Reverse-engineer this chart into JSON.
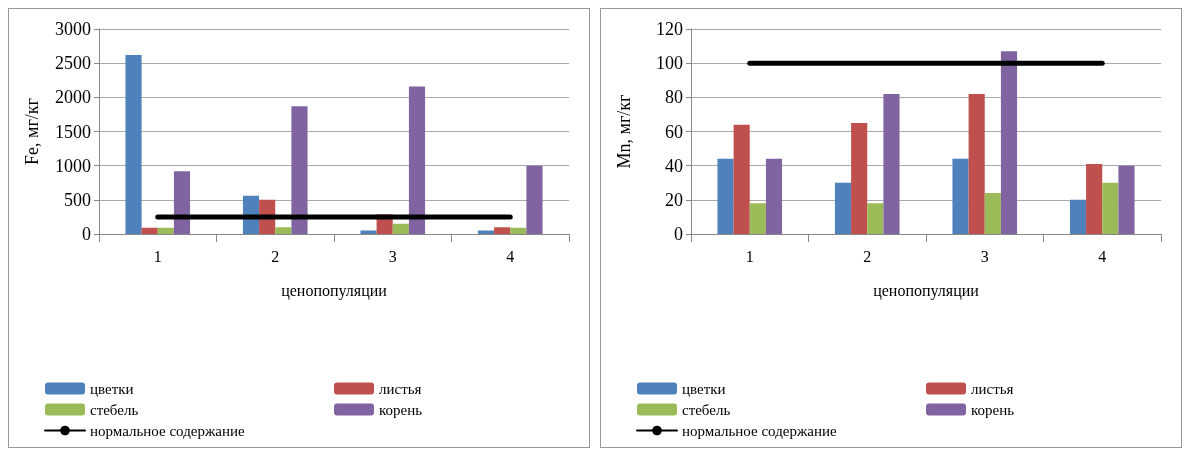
{
  "chart_data": [
    {
      "type": "bar",
      "xlabel": "ценопопуляции",
      "ylabel": "Fe, мг/кг",
      "categories": [
        "1",
        "2",
        "3",
        "4"
      ],
      "ylim": [
        0,
        3000
      ],
      "yticks": [
        0,
        500,
        1000,
        1500,
        2000,
        2500,
        3000
      ],
      "grid": "y",
      "legend": "bottom",
      "series": [
        {
          "name": "цветки",
          "color": "#4f81bd",
          "values": [
            2620,
            560,
            50,
            50
          ]
        },
        {
          "name": "листья",
          "color": "#c0504d",
          "values": [
            90,
            500,
            290,
            100
          ]
        },
        {
          "name": "стебель",
          "color": "#9bbb59",
          "values": [
            90,
            100,
            150,
            90
          ]
        },
        {
          "name": "корень",
          "color": "#8064a2",
          "values": [
            920,
            1870,
            2160,
            1000
          ]
        },
        {
          "name": "нормальное содержание",
          "type": "line",
          "color": "#000000",
          "marker": "none",
          "line_style": "solid",
          "values": [
            250,
            250,
            250,
            250
          ]
        }
      ]
    },
    {
      "type": "bar",
      "xlabel": "ценопопуляции",
      "ylabel": "Mn, мг/кг",
      "categories": [
        "1",
        "2",
        "3",
        "4"
      ],
      "ylim": [
        0,
        120
      ],
      "yticks": [
        0,
        20,
        40,
        60,
        80,
        100,
        120
      ],
      "grid": "y",
      "legend": "bottom",
      "series": [
        {
          "name": "цветки",
          "color": "#4f81bd",
          "values": [
            44,
            30,
            44,
            20
          ]
        },
        {
          "name": "листья",
          "color": "#c0504d",
          "values": [
            64,
            65,
            82,
            41
          ]
        },
        {
          "name": "стебель",
          "color": "#9bbb59",
          "values": [
            18,
            18,
            24,
            30
          ]
        },
        {
          "name": "корень",
          "color": "#8064a2",
          "values": [
            44,
            82,
            107,
            40
          ]
        },
        {
          "name": "нормальное содержание",
          "type": "line",
          "color": "#000000",
          "marker": "none",
          "line_style": "solid",
          "values": [
            100,
            100,
            100,
            100
          ]
        }
      ]
    }
  ]
}
